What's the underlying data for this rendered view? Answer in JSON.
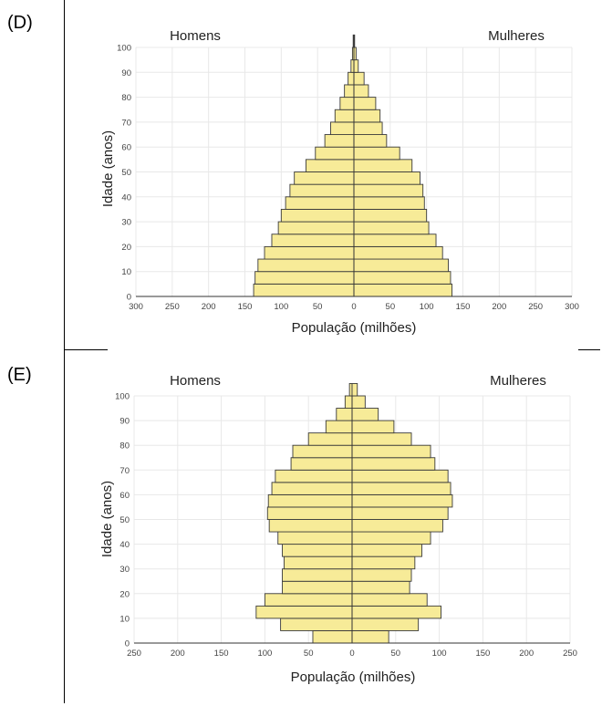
{
  "panels": [
    {
      "label": "(D)"
    },
    {
      "label": "(E)"
    }
  ],
  "chart_data": [
    {
      "type": "bar",
      "orientation": "horizontal",
      "subtype": "population-pyramid",
      "xlabel": "População (milhões)",
      "ylabel": "Idade (anos)",
      "left_label": "Homens",
      "right_label": "Mulheres",
      "xlim": [
        -300,
        300
      ],
      "xticks": [
        300,
        250,
        200,
        150,
        100,
        50,
        0,
        50,
        100,
        150,
        200,
        250,
        300
      ],
      "ylim": [
        0,
        100
      ],
      "yticks": [
        0,
        10,
        20,
        30,
        40,
        50,
        60,
        70,
        80,
        90,
        100
      ],
      "grid": true,
      "age_groups": [
        "0-4",
        "5-9",
        "10-14",
        "15-19",
        "20-24",
        "25-29",
        "30-34",
        "35-39",
        "40-44",
        "45-49",
        "50-54",
        "55-59",
        "60-64",
        "65-69",
        "70-74",
        "75-79",
        "80-84",
        "85-89",
        "90-94",
        "95-99",
        "100+"
      ],
      "series": [
        {
          "name": "Homens",
          "values": [
            138,
            136,
            132,
            123,
            113,
            104,
            100,
            94,
            88,
            82,
            66,
            53,
            40,
            32,
            26,
            19,
            13,
            8,
            4,
            2,
            1
          ]
        },
        {
          "name": "Mulheres",
          "values": [
            135,
            133,
            130,
            122,
            113,
            103,
            100,
            97,
            95,
            91,
            80,
            63,
            45,
            39,
            36,
            30,
            20,
            14,
            6,
            3,
            1
          ]
        }
      ],
      "colors": {
        "fill": "#f7eb98",
        "stroke": "#3a3a3a",
        "grid": "#e8e8e8"
      }
    },
    {
      "type": "bar",
      "orientation": "horizontal",
      "subtype": "population-pyramid",
      "xlabel": "População (milhões)",
      "ylabel": "Idade (anos)",
      "left_label": "Homens",
      "right_label": "Mulheres",
      "xlim": [
        -250,
        250
      ],
      "xticks": [
        250,
        200,
        150,
        100,
        50,
        0,
        50,
        100,
        150,
        200,
        250
      ],
      "ylim": [
        0,
        100
      ],
      "yticks": [
        0,
        10,
        20,
        30,
        40,
        50,
        60,
        70,
        80,
        90,
        100
      ],
      "grid": true,
      "age_groups": [
        "0-4",
        "5-9",
        "10-14",
        "15-19",
        "20-24",
        "25-29",
        "30-34",
        "35-39",
        "40-44",
        "45-49",
        "50-54",
        "55-59",
        "60-64",
        "65-69",
        "70-74",
        "75-79",
        "80-84",
        "85-89",
        "90-94",
        "95-99",
        "100+"
      ],
      "series": [
        {
          "name": "Homens",
          "values": [
            45,
            82,
            110,
            100,
            80,
            80,
            78,
            80,
            85,
            95,
            97,
            96,
            92,
            88,
            70,
            68,
            50,
            30,
            18,
            8,
            3
          ]
        },
        {
          "name": "Mulheres",
          "values": [
            42,
            76,
            102,
            86,
            66,
            68,
            72,
            80,
            90,
            104,
            110,
            115,
            113,
            110,
            95,
            90,
            68,
            48,
            30,
            15,
            6
          ]
        }
      ],
      "colors": {
        "fill": "#f7eb98",
        "stroke": "#3a3a3a",
        "grid": "#e8e8e8"
      }
    }
  ]
}
